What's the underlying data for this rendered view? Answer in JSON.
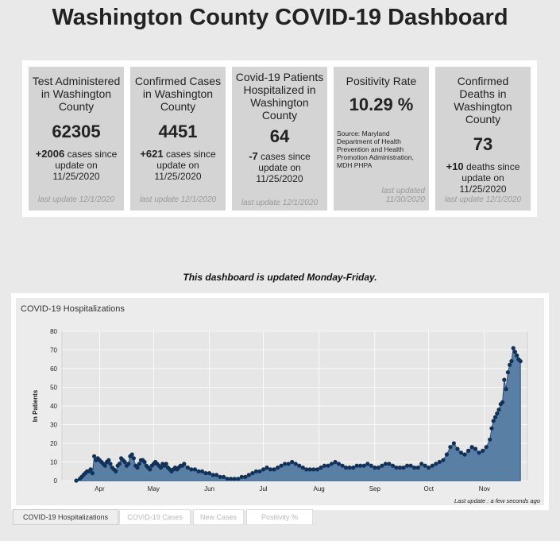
{
  "page": {
    "title": "Washington County COVID-19 Dashboard",
    "note": "This dashboard is updated Monday-Friday."
  },
  "cards": [
    {
      "title": "Test Administered in Washington County",
      "value": "62305",
      "change_amount": "+2006",
      "change_text": " cases since update on 11/25/2020",
      "updated": "last update 12/1/2020"
    },
    {
      "title": "Confirmed Cases in Washington County",
      "value": "4451",
      "change_amount": "+621",
      "change_text": " cases since update on 11/25/2020",
      "updated": "last update 12/1/2020"
    },
    {
      "title": "Covid-19 Patients Hospitalized in Washington County",
      "value": "64",
      "change_amount": "-7",
      "change_text": " cases since update on 11/25/2020",
      "updated": "last update 12/1/2020"
    },
    {
      "title": "Positivity Rate",
      "value": "10.29 %",
      "source": "Source: Maryland Department of Health Prevention and Health Promotion Administration, MDH PHPA",
      "updated_line1": "last updated",
      "updated_line2": "11/30/2020"
    },
    {
      "title": "Confirmed Deaths in Washington County",
      "value": "73",
      "change_amount": "+10",
      "change_text": " deaths since update on 11/25/2020",
      "updated": "last update 12/1/2020"
    }
  ],
  "chart": {
    "panel_title": "COVID-19 Hospitalizations",
    "last_update": "Last update : a few seconds ago"
  },
  "tabs": [
    {
      "label": "COVID-19 Hospitalizations",
      "active": true
    },
    {
      "label": "COVID-19 Cases",
      "active": false
    },
    {
      "label": "New Cases",
      "active": false
    },
    {
      "label": "Positivity %",
      "active": false
    }
  ],
  "colors": {
    "area_fill": "#5a7fa5",
    "area_line": "#2e4f77",
    "point": "#10325a"
  },
  "chart_data": {
    "type": "area",
    "title": "COVID-19 Hospitalizations",
    "ylabel": "In Patients",
    "xlabel": "",
    "ylim": [
      0,
      80
    ],
    "yticks": [
      0,
      10,
      20,
      30,
      40,
      50,
      60,
      70,
      80
    ],
    "x_start": "2020-03-19",
    "month_ticks": [
      {
        "label": "Apr",
        "day": 13
      },
      {
        "label": "May",
        "day": 43
      },
      {
        "label": "Jun",
        "day": 74
      },
      {
        "label": "Jul",
        "day": 104
      },
      {
        "label": "Aug",
        "day": 135
      },
      {
        "label": "Sep",
        "day": 166
      },
      {
        "label": "Oct",
        "day": 196
      },
      {
        "label": "Nov",
        "day": 227
      }
    ],
    "gridlines": true,
    "series": [
      {
        "name": "Hospitalizations",
        "points": [
          [
            0,
            0
          ],
          [
            2,
            1
          ],
          [
            3,
            2
          ],
          [
            4,
            3
          ],
          [
            5,
            4
          ],
          [
            6,
            5
          ],
          [
            7,
            5
          ],
          [
            8,
            6
          ],
          [
            9,
            4
          ],
          [
            10,
            13
          ],
          [
            11,
            11
          ],
          [
            12,
            12
          ],
          [
            13,
            11
          ],
          [
            14,
            10
          ],
          [
            15,
            9
          ],
          [
            16,
            8
          ],
          [
            17,
            10
          ],
          [
            18,
            11
          ],
          [
            19,
            9
          ],
          [
            20,
            7
          ],
          [
            21,
            6
          ],
          [
            22,
            5
          ],
          [
            23,
            8
          ],
          [
            24,
            9
          ],
          [
            25,
            12
          ],
          [
            26,
            11
          ],
          [
            27,
            10
          ],
          [
            28,
            8
          ],
          [
            29,
            9
          ],
          [
            30,
            13
          ],
          [
            31,
            14
          ],
          [
            32,
            12
          ],
          [
            33,
            8
          ],
          [
            34,
            7
          ],
          [
            35,
            9
          ],
          [
            36,
            11
          ],
          [
            37,
            11
          ],
          [
            38,
            10
          ],
          [
            39,
            8
          ],
          [
            40,
            7
          ],
          [
            41,
            6
          ],
          [
            42,
            8
          ],
          [
            43,
            9
          ],
          [
            44,
            10
          ],
          [
            45,
            9
          ],
          [
            46,
            8
          ],
          [
            47,
            7
          ],
          [
            48,
            9
          ],
          [
            49,
            8
          ],
          [
            50,
            9
          ],
          [
            51,
            7
          ],
          [
            52,
            6
          ],
          [
            53,
            5
          ],
          [
            54,
            6
          ],
          [
            55,
            7
          ],
          [
            56,
            6
          ],
          [
            57,
            7
          ],
          [
            58,
            8
          ],
          [
            59,
            8
          ],
          [
            60,
            9
          ],
          [
            62,
            7
          ],
          [
            64,
            6
          ],
          [
            66,
            6
          ],
          [
            68,
            5
          ],
          [
            70,
            5
          ],
          [
            72,
            4
          ],
          [
            74,
            4
          ],
          [
            76,
            3
          ],
          [
            78,
            3
          ],
          [
            80,
            2
          ],
          [
            82,
            2
          ],
          [
            84,
            1
          ],
          [
            86,
            1
          ],
          [
            88,
            1
          ],
          [
            90,
            1
          ],
          [
            92,
            2
          ],
          [
            94,
            2
          ],
          [
            96,
            3
          ],
          [
            98,
            4
          ],
          [
            100,
            5
          ],
          [
            102,
            5
          ],
          [
            104,
            6
          ],
          [
            106,
            7
          ],
          [
            108,
            6
          ],
          [
            110,
            6
          ],
          [
            112,
            7
          ],
          [
            114,
            8
          ],
          [
            116,
            9
          ],
          [
            118,
            9
          ],
          [
            120,
            10
          ],
          [
            122,
            9
          ],
          [
            124,
            8
          ],
          [
            126,
            7
          ],
          [
            128,
            6
          ],
          [
            130,
            6
          ],
          [
            132,
            6
          ],
          [
            134,
            6
          ],
          [
            136,
            7
          ],
          [
            138,
            8
          ],
          [
            140,
            8
          ],
          [
            142,
            9
          ],
          [
            144,
            10
          ],
          [
            146,
            9
          ],
          [
            148,
            8
          ],
          [
            150,
            7
          ],
          [
            152,
            7
          ],
          [
            154,
            7
          ],
          [
            156,
            8
          ],
          [
            158,
            8
          ],
          [
            160,
            8
          ],
          [
            162,
            9
          ],
          [
            164,
            8
          ],
          [
            166,
            7
          ],
          [
            168,
            7
          ],
          [
            170,
            8
          ],
          [
            172,
            9
          ],
          [
            174,
            9
          ],
          [
            176,
            8
          ],
          [
            178,
            7
          ],
          [
            180,
            7
          ],
          [
            182,
            7
          ],
          [
            184,
            8
          ],
          [
            186,
            8
          ],
          [
            188,
            7
          ],
          [
            190,
            7
          ],
          [
            192,
            9
          ],
          [
            194,
            8
          ],
          [
            196,
            7
          ],
          [
            198,
            8
          ],
          [
            200,
            9
          ],
          [
            202,
            10
          ],
          [
            204,
            11
          ],
          [
            206,
            14
          ],
          [
            208,
            18
          ],
          [
            210,
            20
          ],
          [
            212,
            17
          ],
          [
            214,
            15
          ],
          [
            216,
            14
          ],
          [
            218,
            16
          ],
          [
            220,
            18
          ],
          [
            222,
            17
          ],
          [
            224,
            15
          ],
          [
            226,
            16
          ],
          [
            228,
            18
          ],
          [
            230,
            22
          ],
          [
            231,
            28
          ],
          [
            232,
            32
          ],
          [
            233,
            34
          ],
          [
            234,
            36
          ],
          [
            235,
            38
          ],
          [
            236,
            41
          ],
          [
            237,
            42
          ],
          [
            238,
            54
          ],
          [
            239,
            49
          ],
          [
            240,
            58
          ],
          [
            241,
            62
          ],
          [
            242,
            64
          ],
          [
            243,
            71
          ],
          [
            244,
            69
          ],
          [
            245,
            67
          ],
          [
            246,
            65
          ],
          [
            247,
            64
          ]
        ]
      }
    ]
  }
}
